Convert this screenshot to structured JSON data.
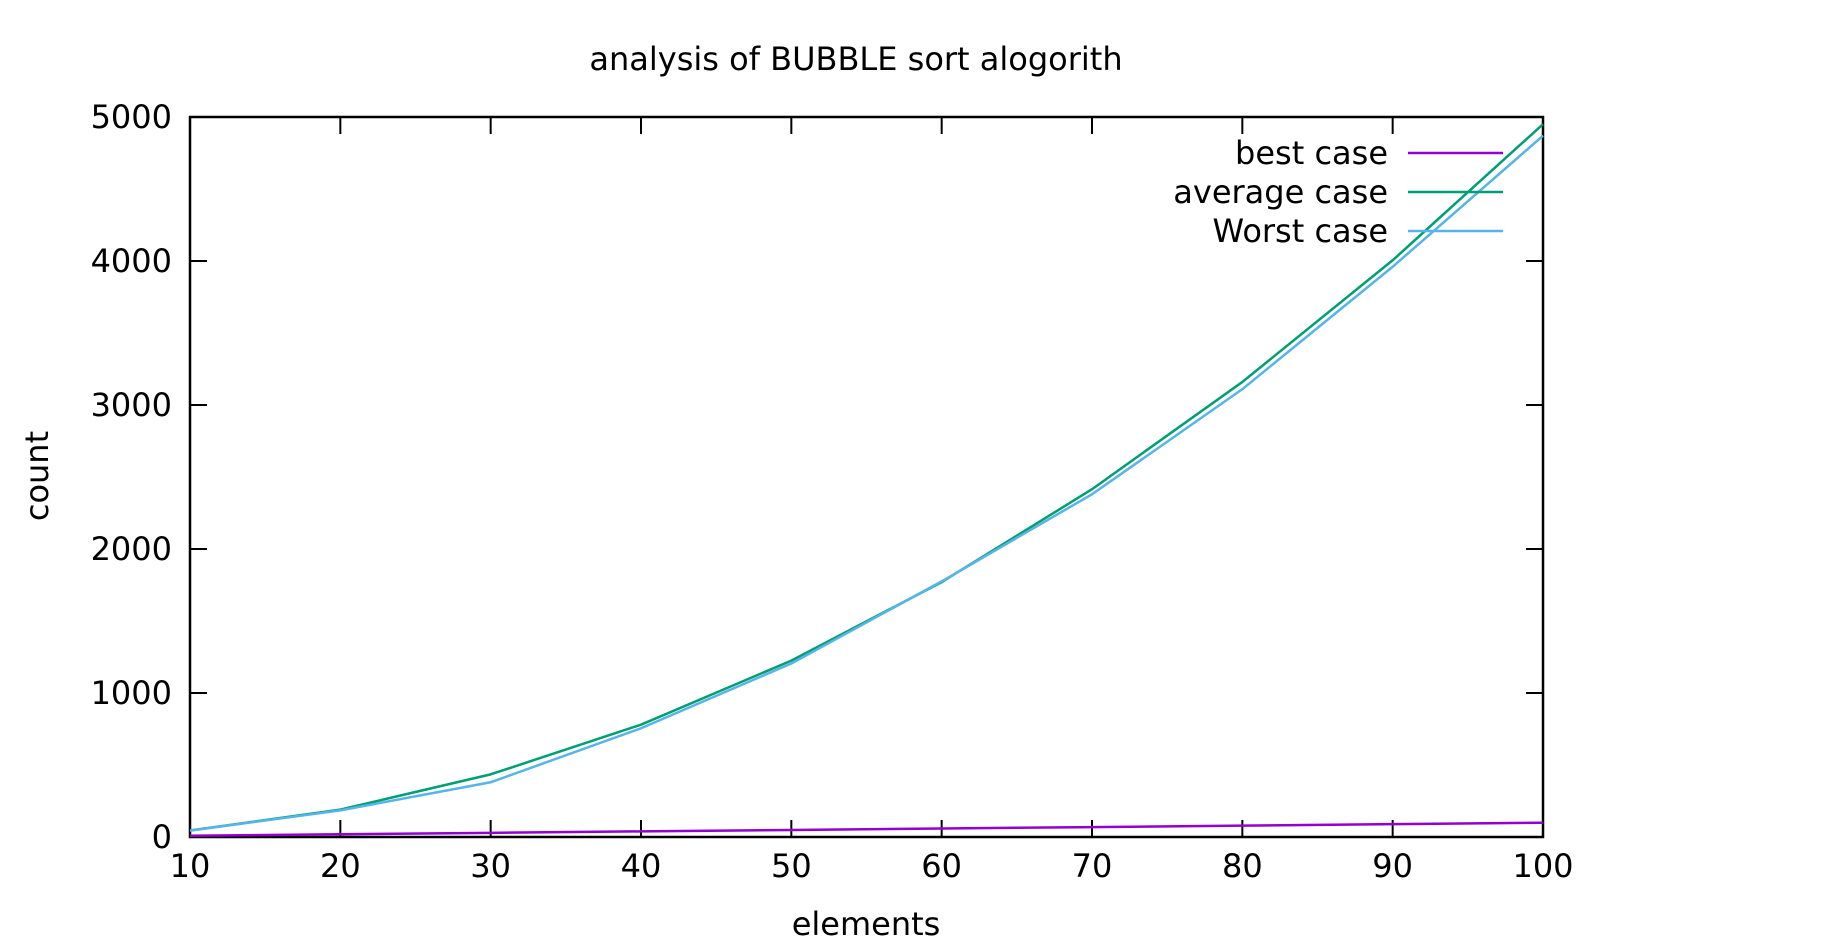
{
  "chart_data": {
    "type": "line",
    "title": "analysis of BUBBLE sort alogorith",
    "xlabel": "elements",
    "ylabel": "count",
    "x": [
      10,
      20,
      30,
      40,
      50,
      60,
      70,
      80,
      90,
      100
    ],
    "xlim": [
      10,
      100
    ],
    "ylim": [
      0,
      5000
    ],
    "xticks": [
      10,
      20,
      30,
      40,
      50,
      60,
      70,
      80,
      90,
      100
    ],
    "yticks": [
      0,
      1000,
      2000,
      3000,
      4000,
      5000
    ],
    "grid": false,
    "legend": "top-right",
    "series": [
      {
        "name": "best case",
        "color": "#9400d3",
        "values": [
          9,
          19,
          29,
          39,
          49,
          59,
          69,
          79,
          89,
          99
        ]
      },
      {
        "name": "average case",
        "color": "#009e73",
        "values": [
          45,
          190,
          435,
          780,
          1225,
          1770,
          2415,
          3160,
          4005,
          4950
        ]
      },
      {
        "name": "Worst case",
        "color": "#56b4e9",
        "values": [
          44,
          185,
          380,
          755,
          1205,
          1775,
          2380,
          3110,
          3960,
          4870
        ]
      }
    ]
  }
}
